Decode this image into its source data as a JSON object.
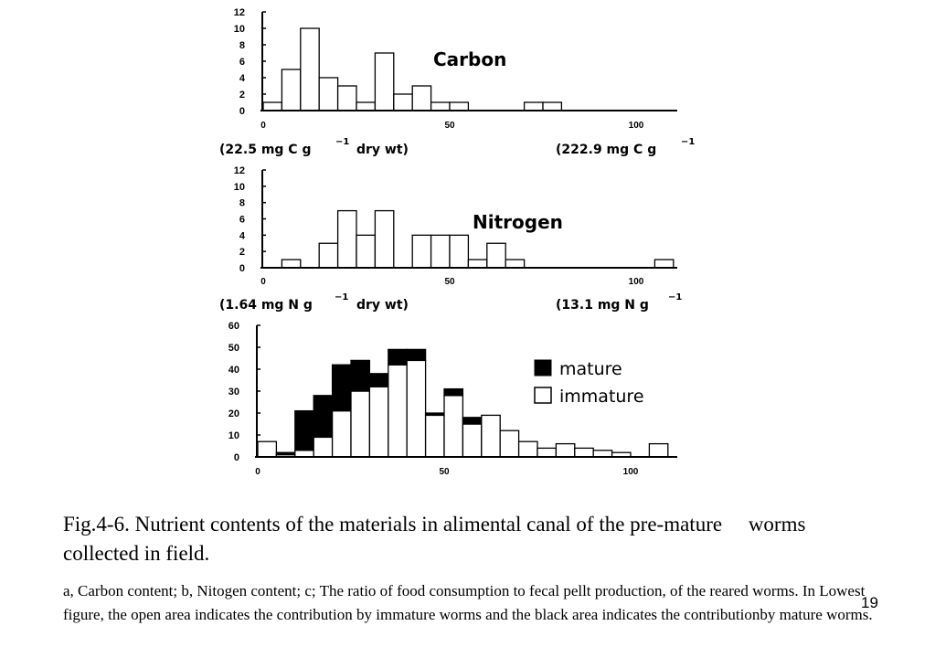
{
  "chart_data": [
    {
      "type": "bar",
      "title": "Carbon",
      "bin_width": 5,
      "x_range": [
        0,
        110
      ],
      "ylim": [
        0,
        12
      ],
      "yticks": [
        0,
        2,
        4,
        6,
        8,
        10,
        12
      ],
      "xticks": [
        0,
        50,
        100
      ],
      "bins_start": [
        0,
        5,
        10,
        15,
        20,
        25,
        30,
        35,
        40,
        45,
        50,
        55,
        60,
        65,
        70,
        75,
        80,
        85,
        90,
        95,
        100,
        105
      ],
      "values": [
        1,
        5,
        10,
        4,
        3,
        1,
        7,
        2,
        3,
        1,
        1,
        0,
        0,
        0,
        1,
        1,
        0,
        0,
        0,
        0,
        0,
        0
      ],
      "unit_left": "(22.5 mg C g",
      "unit_left_sup": "−1",
      "unit_left_tail": "dry wt)",
      "unit_right": "(222.9 mg C g",
      "unit_right_sup": "−1"
    },
    {
      "type": "bar",
      "title": "Nitrogen",
      "bin_width": 5,
      "x_range": [
        0,
        110
      ],
      "ylim": [
        0,
        12
      ],
      "yticks": [
        0,
        2,
        4,
        6,
        8,
        10,
        12
      ],
      "xticks": [
        0,
        50,
        100
      ],
      "bins_start": [
        0,
        5,
        10,
        15,
        20,
        25,
        30,
        35,
        40,
        45,
        50,
        55,
        60,
        65,
        70,
        75,
        80,
        85,
        90,
        95,
        100,
        105
      ],
      "values": [
        0,
        1,
        0,
        3,
        7,
        4,
        7,
        0,
        4,
        4,
        4,
        1,
        3,
        1,
        0,
        0,
        0,
        0,
        0,
        0,
        0,
        1
      ],
      "unit_left": "(1.64 mg N g",
      "unit_left_sup": "−1",
      "unit_left_tail": "dry wt)",
      "unit_right": "(13.1 mg N g",
      "unit_right_sup": "−1"
    },
    {
      "type": "stacked-bar",
      "bin_width": 5,
      "x_range": [
        0,
        110
      ],
      "ylim": [
        0,
        60
      ],
      "yticks": [
        0,
        10,
        20,
        30,
        40,
        50,
        60
      ],
      "xticks": [
        0,
        50,
        100
      ],
      "bins_start": [
        0,
        5,
        10,
        15,
        20,
        25,
        30,
        35,
        40,
        45,
        50,
        55,
        60,
        65,
        70,
        75,
        80,
        85,
        90,
        95,
        100,
        105
      ],
      "series": [
        {
          "name": "immature",
          "color": "#ffffff",
          "values": [
            7,
            1,
            3,
            9,
            21,
            30,
            32,
            42,
            44,
            19,
            28,
            15,
            19,
            12,
            7,
            4,
            6,
            4,
            3,
            2,
            0,
            6
          ]
        },
        {
          "name": "mature",
          "color": "#000000",
          "values": [
            0,
            1,
            18,
            19,
            21,
            14,
            6,
            7,
            5,
            1,
            3,
            3,
            0,
            0,
            0,
            0,
            0,
            0,
            0,
            0,
            0,
            0
          ]
        }
      ],
      "legend": {
        "mature": "mature",
        "immature": "immature"
      }
    }
  ],
  "caption": {
    "line1": "Fig.4-6. Nutrient contents of the materials in alimental canal of the pre-mature     worms",
    "line2": "collected in field.",
    "note": "a, Carbon content; b, Nitogen content; c; The ratio of food consumption to fecal pellt production, of the reared worms. In Lowest figure, the open area indicates the contribution by immature worms and the black area indicates the contributionby mature worms."
  },
  "page_number": "19"
}
